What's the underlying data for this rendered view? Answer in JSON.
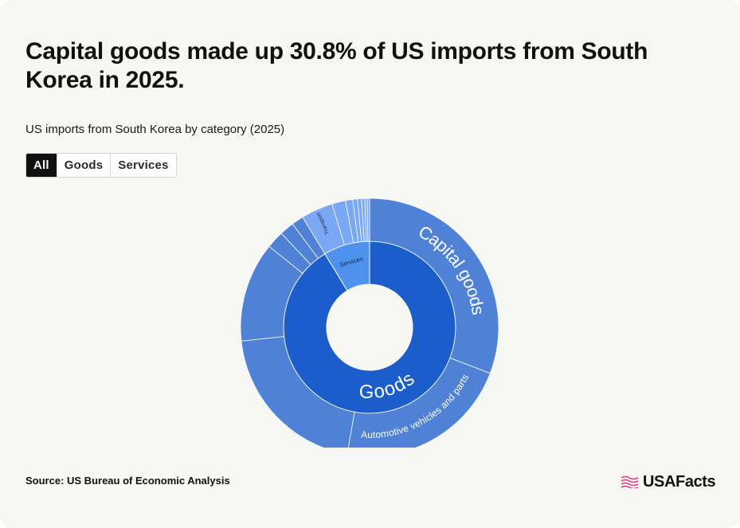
{
  "header": {
    "title": "Capital goods made up 30.8% of US imports from South Korea in 2025.",
    "subtitle": "US imports from South Korea by category (2025)"
  },
  "tabs": [
    {
      "label": "All",
      "active": true
    },
    {
      "label": "Goods",
      "active": false
    },
    {
      "label": "Services",
      "active": false
    }
  ],
  "chart_data": {
    "type": "sunburst",
    "inner": [
      {
        "label": "Goods",
        "share": 0.913,
        "color": "#1b5ecb"
      },
      {
        "label": "Services",
        "share": 0.087,
        "color": "#4f92ee"
      }
    ],
    "outer": [
      {
        "label": "Capital goods",
        "parent": "Goods",
        "share": 0.308,
        "color": "#4f82d6"
      },
      {
        "label": "Automotive vehicles and parts",
        "parent": "Goods",
        "share": 0.22,
        "color": "#4f82d6"
      },
      {
        "label": "",
        "parent": "Goods",
        "share": 0.205,
        "color": "#4f82d6"
      },
      {
        "label": "",
        "parent": "Goods",
        "share": 0.125,
        "color": "#4f82d6"
      },
      {
        "label": "",
        "parent": "Goods",
        "share": 0.022,
        "color": "#4f82d6"
      },
      {
        "label": "",
        "parent": "Goods",
        "share": 0.018,
        "color": "#4f82d6"
      },
      {
        "label": "",
        "parent": "Goods",
        "share": 0.015,
        "color": "#4f82d6"
      },
      {
        "label": "Transport",
        "parent": "Services",
        "share": 0.04,
        "color": "#7aa8f4"
      },
      {
        "label": "",
        "parent": "Services",
        "share": 0.017,
        "color": "#7aa8f4"
      },
      {
        "label": "",
        "parent": "Services",
        "share": 0.009,
        "color": "#7aa8f4"
      },
      {
        "label": "",
        "parent": "Services",
        "share": 0.006,
        "color": "#7aa8f4"
      },
      {
        "label": "",
        "parent": "Services",
        "share": 0.005,
        "color": "#7aa8f4"
      },
      {
        "label": "",
        "parent": "Services",
        "share": 0.004,
        "color": "#7aa8f4"
      },
      {
        "label": "",
        "parent": "Services",
        "share": 0.003,
        "color": "#7aa8f4"
      },
      {
        "label": "",
        "parent": "Services",
        "share": 0.003,
        "color": "#7aa8f4"
      }
    ]
  },
  "footer": {
    "source": "Source: US Bureau of Economic Analysis",
    "brand": "USAFacts"
  },
  "colors": {
    "background": "#f6f6f3",
    "goods": "#1b5ecb",
    "services": "#4f92ee",
    "goods_outer": "#4f82d6",
    "services_outer": "#7aa8f4",
    "brand_flag": "#e23c86"
  }
}
